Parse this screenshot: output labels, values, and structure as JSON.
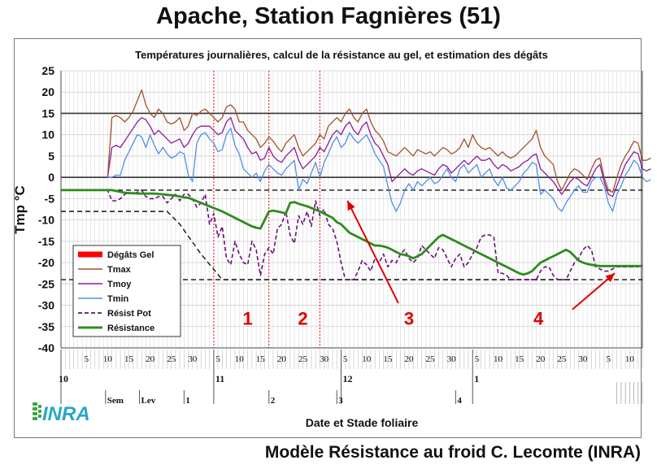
{
  "page": {
    "title": "Apache, Station Fagnières (51)",
    "footer": "Modèle Résistance au froid C. Lecomte (INRA)",
    "logo_text": "INRA"
  },
  "chart_data": {
    "type": "line",
    "title": "Températures journalières, calcul de la résistance au gel, et estimation des dégâts",
    "ylabel": "Tmp °C",
    "xlabel": "Date et Stade foliaire",
    "ylim": [
      -40,
      25
    ],
    "yticks": [
      25,
      20,
      15,
      10,
      5,
      0,
      -5,
      -10,
      -15,
      -20,
      -25,
      -30,
      -35,
      -40
    ],
    "x_day_range": [
      0,
      137
    ],
    "day_ticks": [
      {
        "x": 6,
        "label": "5"
      },
      {
        "x": 11,
        "label": "10"
      },
      {
        "x": 16,
        "label": "15"
      },
      {
        "x": 21,
        "label": "20"
      },
      {
        "x": 26,
        "label": "25"
      },
      {
        "x": 31,
        "label": "30"
      },
      {
        "x": 37,
        "label": "5"
      },
      {
        "x": 42,
        "label": "10"
      },
      {
        "x": 47,
        "label": "15"
      },
      {
        "x": 52,
        "label": "20"
      },
      {
        "x": 57,
        "label": "25"
      },
      {
        "x": 62,
        "label": "30"
      },
      {
        "x": 67,
        "label": "5"
      },
      {
        "x": 72,
        "label": "10"
      },
      {
        "x": 77,
        "label": "15"
      },
      {
        "x": 82,
        "label": "20"
      },
      {
        "x": 87,
        "label": "25"
      },
      {
        "x": 92,
        "label": "30"
      },
      {
        "x": 98,
        "label": "5"
      },
      {
        "x": 103,
        "label": "10"
      },
      {
        "x": 108,
        "label": "15"
      },
      {
        "x": 113,
        "label": "20"
      },
      {
        "x": 118,
        "label": "25"
      },
      {
        "x": 123,
        "label": "30"
      },
      {
        "x": 129,
        "label": "5"
      },
      {
        "x": 134,
        "label": "10"
      }
    ],
    "months": [
      {
        "x": 0,
        "label": "10"
      },
      {
        "x": 36,
        "label": "11"
      },
      {
        "x": 66,
        "label": "12"
      },
      {
        "x": 97,
        "label": "1"
      }
    ],
    "stages": [
      {
        "x": 10.5,
        "label": "Sem"
      },
      {
        "x": 18.5,
        "label": "Lev"
      },
      {
        "x": 29,
        "label": "1"
      },
      {
        "x": 49,
        "label": "2"
      },
      {
        "x": 65,
        "label": "3"
      },
      {
        "x": 93,
        "label": "4"
      }
    ],
    "reference_lines": {
      "solid": [
        15,
        0
      ],
      "dashed": [
        -3,
        -24
      ]
    },
    "vertical_markers": [
      36,
      49,
      61
    ],
    "annotations": [
      {
        "label": "1",
        "x": 44,
        "y": -33
      },
      {
        "label": "2",
        "x": 57,
        "y": -33
      },
      {
        "label": "3",
        "x": 82,
        "y": -33
      },
      {
        "label": "4",
        "x": 112.5,
        "y": -33
      }
    ],
    "arrows": [
      {
        "from": [
          79.5,
          -29.5
        ],
        "to": [
          67.5,
          -5.5
        ]
      },
      {
        "from": [
          120.5,
          -31
        ],
        "to": [
          130.5,
          -22.5
        ]
      }
    ],
    "legend": {
      "position": "left",
      "entries": [
        "Dégâts Gel",
        "Tmax",
        "Tmoy",
        "Tmin",
        "Résist Pot",
        "Résistance"
      ]
    },
    "colors": {
      "degats": "#ff0000",
      "tmax": "#a0522d",
      "tmoy": "#8b1a9e",
      "tmin": "#4f8fe8",
      "resist_pot": "#6a0f7a",
      "resistance": "#2e8b1f",
      "annotation": "#e00000"
    },
    "series": [
      {
        "name": "Tmax",
        "x_start": 11,
        "values": [
          0,
          14,
          14.5,
          14,
          13,
          14,
          15.5,
          18,
          20.5,
          17,
          15,
          14,
          16,
          15,
          13,
          12.5,
          13,
          14,
          11,
          12,
          15,
          14.5,
          15.5,
          16,
          15,
          14,
          13,
          14,
          16.5,
          17,
          16,
          13,
          13,
          11,
          10,
          9,
          7,
          8,
          9.5,
          8.5,
          7,
          6,
          8,
          9,
          10,
          7,
          5,
          6,
          7,
          8,
          10,
          9,
          12,
          13,
          14,
          13,
          15,
          16,
          14,
          13,
          15,
          16,
          13,
          11,
          10,
          8.5,
          6,
          5.5,
          5,
          6,
          7,
          6,
          5,
          6.5,
          6,
          5.5,
          6,
          5,
          6,
          7,
          6.5,
          5.5,
          6,
          7,
          9,
          7,
          10,
          8,
          7,
          6.5,
          7,
          6,
          5,
          6,
          5,
          4.5,
          5,
          6,
          7,
          8,
          9,
          11,
          7,
          5,
          4,
          3,
          -1,
          -3,
          -1,
          1,
          2,
          1.5,
          0.5,
          -0.5,
          2,
          4,
          4.5,
          0,
          -3,
          -3.5,
          0,
          3,
          5,
          6.5,
          8.5,
          8,
          4,
          4,
          4.5
        ]
      },
      {
        "name": "Tmoy",
        "x_start": 11,
        "values": [
          0,
          7,
          7.5,
          7,
          8.5,
          10,
          11.5,
          13,
          14,
          13.5,
          12,
          10,
          11,
          10,
          9,
          8,
          8.5,
          9,
          7,
          8,
          10,
          11.5,
          12,
          12,
          12,
          11,
          10,
          10.5,
          13,
          14,
          11,
          10,
          9,
          7,
          5.5,
          6,
          4,
          4.5,
          7,
          5,
          4,
          3.5,
          5,
          6,
          7,
          4,
          2,
          3,
          4,
          5,
          7,
          6,
          8,
          10,
          11,
          10,
          12,
          13,
          11,
          10,
          12,
          13,
          10,
          8,
          7,
          5,
          3,
          -1,
          0,
          1,
          2,
          1,
          0.5,
          1.5,
          2,
          1.5,
          1,
          0.5,
          2,
          3,
          2.5,
          1,
          2,
          3,
          4,
          3,
          4,
          5,
          4,
          4,
          4.5,
          3,
          2,
          3,
          2.5,
          1.5,
          2,
          2.5,
          3.5,
          4,
          5,
          5.5,
          2,
          1,
          0,
          -1,
          -2.5,
          -4,
          -2.5,
          -1,
          0,
          -0.5,
          -1.5,
          -2,
          0,
          2,
          3,
          -1,
          -4,
          -4.5,
          -2,
          0.5,
          3,
          4.5,
          6,
          5.5,
          2,
          1.5,
          2
        ]
      },
      {
        "name": "Tmin",
        "x_start": 11,
        "values": [
          0,
          0,
          0.5,
          0.5,
          4,
          6,
          8,
          10,
          9.5,
          7,
          10,
          7.5,
          5.5,
          7,
          5.5,
          4.5,
          5,
          6,
          5.5,
          0.5,
          -1,
          8,
          10,
          10.5,
          9,
          8,
          6,
          6.5,
          10,
          11.5,
          7.5,
          5.5,
          2,
          1,
          0,
          1,
          -1,
          1.5,
          3,
          2,
          1,
          0.5,
          2,
          3,
          4,
          -3,
          -0.5,
          -1.5,
          1,
          3.5,
          0,
          3.5,
          5.5,
          8,
          9.5,
          7,
          8,
          10.5,
          9,
          8,
          9,
          10,
          8,
          5.5,
          4,
          2.5,
          -2,
          -6,
          -8,
          -6,
          -3,
          -1.5,
          -3,
          -1,
          -2,
          -1,
          0,
          -1.5,
          -1,
          0.5,
          2,
          0,
          -1,
          2,
          3,
          1,
          2,
          3,
          0,
          1,
          2,
          -0.5,
          -2,
          0,
          -2.5,
          -3,
          -2,
          -1,
          1,
          2,
          3.5,
          3,
          -4,
          -3,
          -4,
          -5,
          -7,
          -8,
          -6,
          -4.5,
          -3,
          -2,
          -3.5,
          -3.5,
          -1,
          0,
          0,
          -2,
          -6,
          -8,
          -4,
          -2,
          0.5,
          2,
          4,
          3,
          0,
          -1,
          -0.5
        ]
      },
      {
        "name": "Résist Pot",
        "x_start": 0,
        "values": [
          -3,
          -3,
          -3,
          -3,
          -3,
          -3,
          -3,
          -3,
          -3,
          -3,
          -3,
          -3,
          -5.5,
          -5.5,
          -5,
          -4,
          -3.5,
          -4,
          -3.5,
          -3,
          -4.5,
          -5,
          -5,
          -4.5,
          -4.5,
          -6,
          -5,
          -4,
          -5.5,
          -4,
          -4,
          -5,
          -7,
          -6,
          -4,
          -11,
          -8.5,
          -14,
          -11.5,
          -19,
          -20.5,
          -15,
          -18,
          -20,
          -20.5,
          -15,
          -17,
          -23,
          -18,
          -16.5,
          -18,
          -12,
          -11,
          -8,
          -13.5,
          -15.5,
          -9,
          -11,
          -8,
          -11.5,
          -5.5,
          -9,
          -7.5,
          -11,
          -12,
          -15,
          -20,
          -24,
          -24,
          -24,
          -22,
          -19.5,
          -20.5,
          -22,
          -19,
          -20,
          -18,
          -21,
          -19.5,
          -20,
          -18,
          -17,
          -19,
          -20,
          -19,
          -16,
          -17,
          -18,
          -19,
          -16.5,
          -17,
          -19,
          -21,
          -19,
          -18,
          -21,
          -20,
          -18,
          -16.5,
          -14,
          -13.5,
          -13.5,
          -14,
          -22.5,
          -22.5,
          -23,
          -24,
          -24,
          -24,
          -24,
          -24,
          -24,
          -24,
          -22,
          -21,
          -21,
          -23,
          -24,
          -24,
          -24,
          -22,
          -20,
          -19,
          -17,
          -16,
          -17,
          -21,
          -21.5,
          -22,
          -22,
          -21.5,
          -21,
          -21,
          -21,
          -21,
          -21,
          -21
        ]
      },
      {
        "name": "Résistance",
        "x_start": 0,
        "values": [
          -3,
          -3,
          -3,
          -3,
          -3,
          -3,
          -3,
          -3,
          -3,
          -3,
          -3,
          -3,
          -3,
          -3.2,
          -3.4,
          -3.6,
          -3.7,
          -3.7,
          -3.8,
          -3.8,
          -3.8,
          -3.8,
          -3.8,
          -3.9,
          -4,
          -4.1,
          -4.2,
          -4.3,
          -4.5,
          -4.7,
          -4.8,
          -5.2,
          -5.6,
          -6,
          -6.4,
          -6.8,
          -7.2,
          -7.6,
          -8,
          -8.5,
          -9,
          -9.5,
          -10,
          -10.5,
          -11,
          -11.5,
          -11.8,
          -12,
          -10,
          -8,
          -7.8,
          -8,
          -8.2,
          -8.5,
          -6,
          -5.8,
          -6.2,
          -6.5,
          -6.8,
          -7.2,
          -7.6,
          -8,
          -8.5,
          -9,
          -9.5,
          -10.5,
          -11,
          -12,
          -13,
          -13.5,
          -14,
          -14.5,
          -15,
          -15.5,
          -16,
          -16,
          -16.2,
          -16.5,
          -17,
          -17.5,
          -18,
          -18.2,
          -18.5,
          -19,
          -18.5,
          -18,
          -17,
          -16,
          -15,
          -14,
          -13.5,
          -14,
          -14.5,
          -15,
          -15.5,
          -16,
          -16.5,
          -17,
          -17.5,
          -18,
          -18.5,
          -19,
          -19.5,
          -20,
          -20.5,
          -21,
          -21.5,
          -22,
          -22.5,
          -22.8,
          -22.5,
          -22,
          -21,
          -20,
          -19.5,
          -19,
          -18.5,
          -18,
          -17.5,
          -17,
          -17.5,
          -18.5,
          -19.5,
          -20,
          -20.3,
          -20.5,
          -20.7,
          -20.8,
          -20.8,
          -20.8,
          -20.8,
          -20.8,
          -20.8,
          -20.8,
          -20.8,
          -20.8,
          -20.8,
          -20.8
        ]
      }
    ]
  }
}
